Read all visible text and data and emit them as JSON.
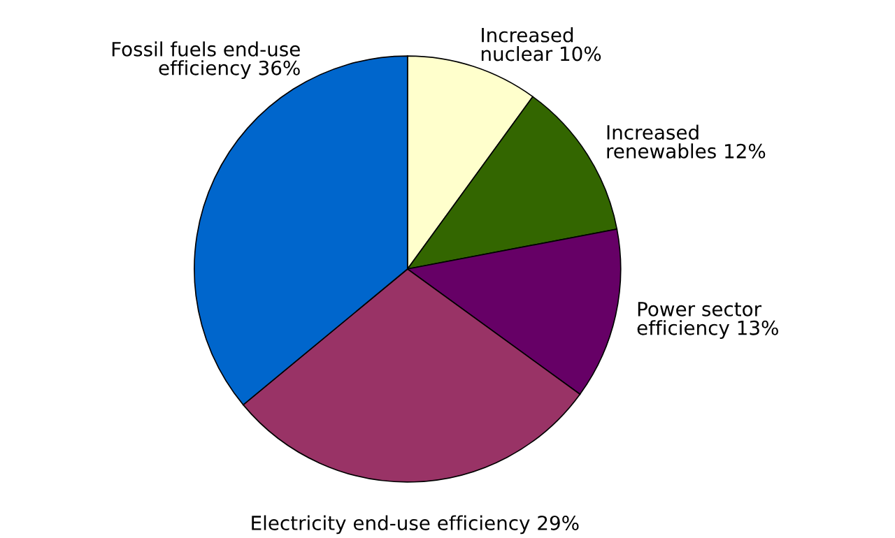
{
  "chart_data": {
    "type": "pie",
    "categories": [
      "Increased\nnuclear 10%",
      "Increased\nrenewables 12%",
      "Power sector\nefficiency 13%",
      "Electricity end-use efficiency 29%",
      "Fossil fuels end-use\nefficiency 36%"
    ],
    "values": [
      10,
      12,
      13,
      29,
      36
    ],
    "colors": [
      "#ffffcc",
      "#336600",
      "#660066",
      "#993366",
      "#0066cc"
    ]
  }
}
